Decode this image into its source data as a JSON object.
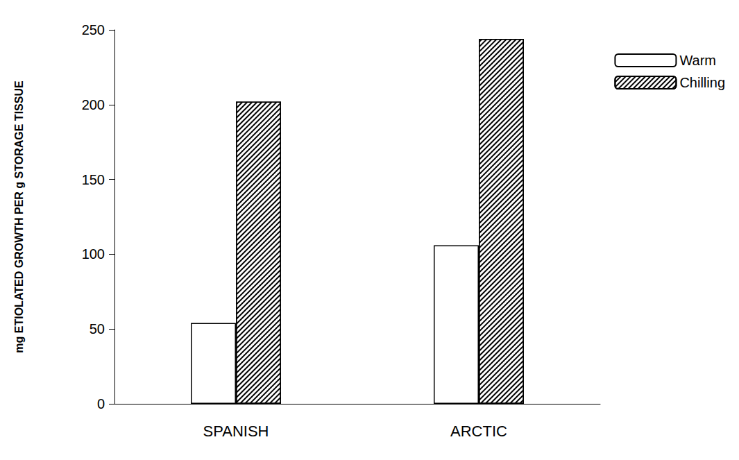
{
  "chart_data": {
    "type": "bar",
    "y_label": "mg ETIOLATED GROWTH PER g STORAGE TISSUE",
    "categories": [
      "SPANISH",
      "ARCTIC"
    ],
    "series": [
      {
        "name": "Warm",
        "color": "#ffffff",
        "values": [
          54,
          106
        ]
      },
      {
        "name": "Chilling",
        "color": "#ffffff",
        "marker": "hatch",
        "values": [
          202,
          244
        ]
      }
    ],
    "ylim": [
      0,
      250
    ],
    "yticks": [
      0,
      50,
      100,
      150,
      200,
      250
    ],
    "grid": false,
    "legend": "upper right"
  }
}
